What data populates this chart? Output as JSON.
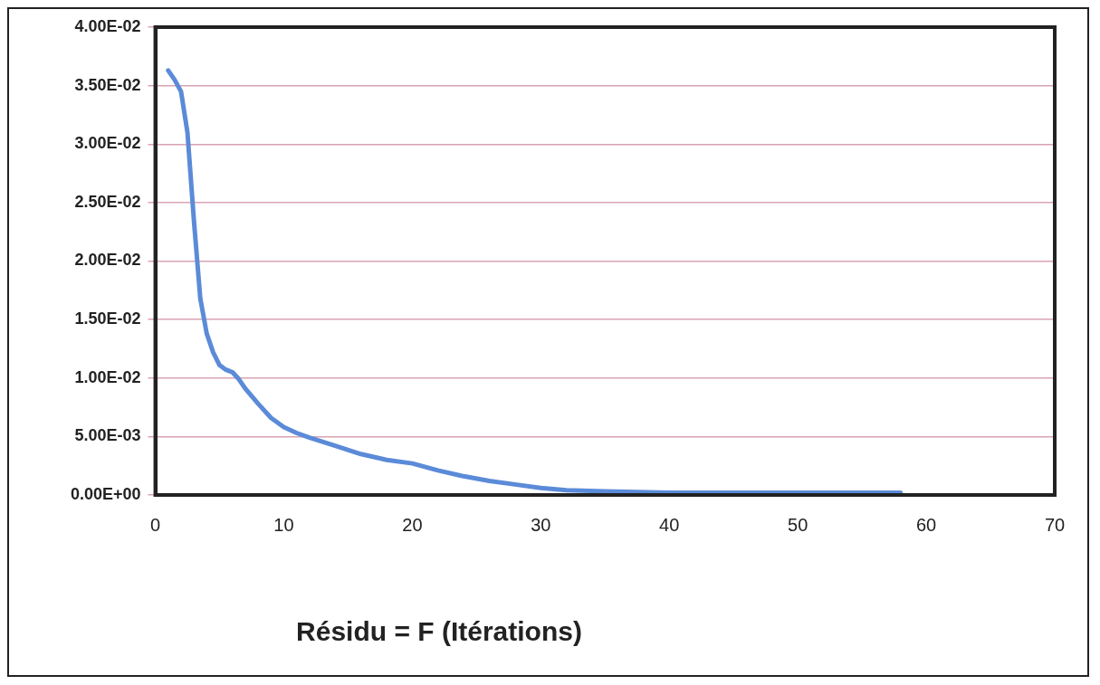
{
  "chart_data": {
    "type": "line",
    "xlabel": "Résidu = F (Itérations)",
    "x": [
      1,
      1.5,
      2,
      2.5,
      3,
      3.5,
      4,
      4.5,
      5,
      5.5,
      6,
      6.5,
      7,
      8,
      9,
      10,
      11,
      12,
      14,
      16,
      18,
      20,
      22,
      24,
      26,
      28,
      30,
      32,
      35,
      40,
      45,
      50,
      55,
      58
    ],
    "series": [
      {
        "color": "#5b8bd8",
        "values": [
          0.0363,
          0.0355,
          0.0345,
          0.031,
          0.0235,
          0.0168,
          0.0138,
          0.0122,
          0.0111,
          0.0107,
          0.0105,
          0.0099,
          0.0091,
          0.0078,
          0.0066,
          0.0058,
          0.0053,
          0.0049,
          0.0042,
          0.0035,
          0.003,
          0.0027,
          0.0021,
          0.0016,
          0.0012,
          0.0009,
          0.0006,
          0.0004,
          0.0003,
          0.0002,
          0.0002,
          0.0002,
          0.0002,
          0.0002
        ]
      }
    ],
    "xlim": [
      0,
      70
    ],
    "xticks": [
      0,
      10,
      20,
      30,
      40,
      50,
      60,
      70
    ],
    "ylim": [
      0,
      0.04
    ],
    "yticks": [
      {
        "value": 0,
        "label": "0.00E+00"
      },
      {
        "value": 0.005,
        "label": "5.00E-03"
      },
      {
        "value": 0.01,
        "label": "1.00E-02"
      },
      {
        "value": 0.015,
        "label": "1.50E-02"
      },
      {
        "value": 0.02,
        "label": "2.00E-02"
      },
      {
        "value": 0.025,
        "label": "2.50E-02"
      },
      {
        "value": 0.03,
        "label": "3.00E-02"
      },
      {
        "value": 0.035,
        "label": "3.50E-02"
      },
      {
        "value": 0.04,
        "label": "4.00E-02"
      }
    ],
    "grid": "y",
    "legend": false,
    "marker": "none",
    "line_style": "solid"
  }
}
